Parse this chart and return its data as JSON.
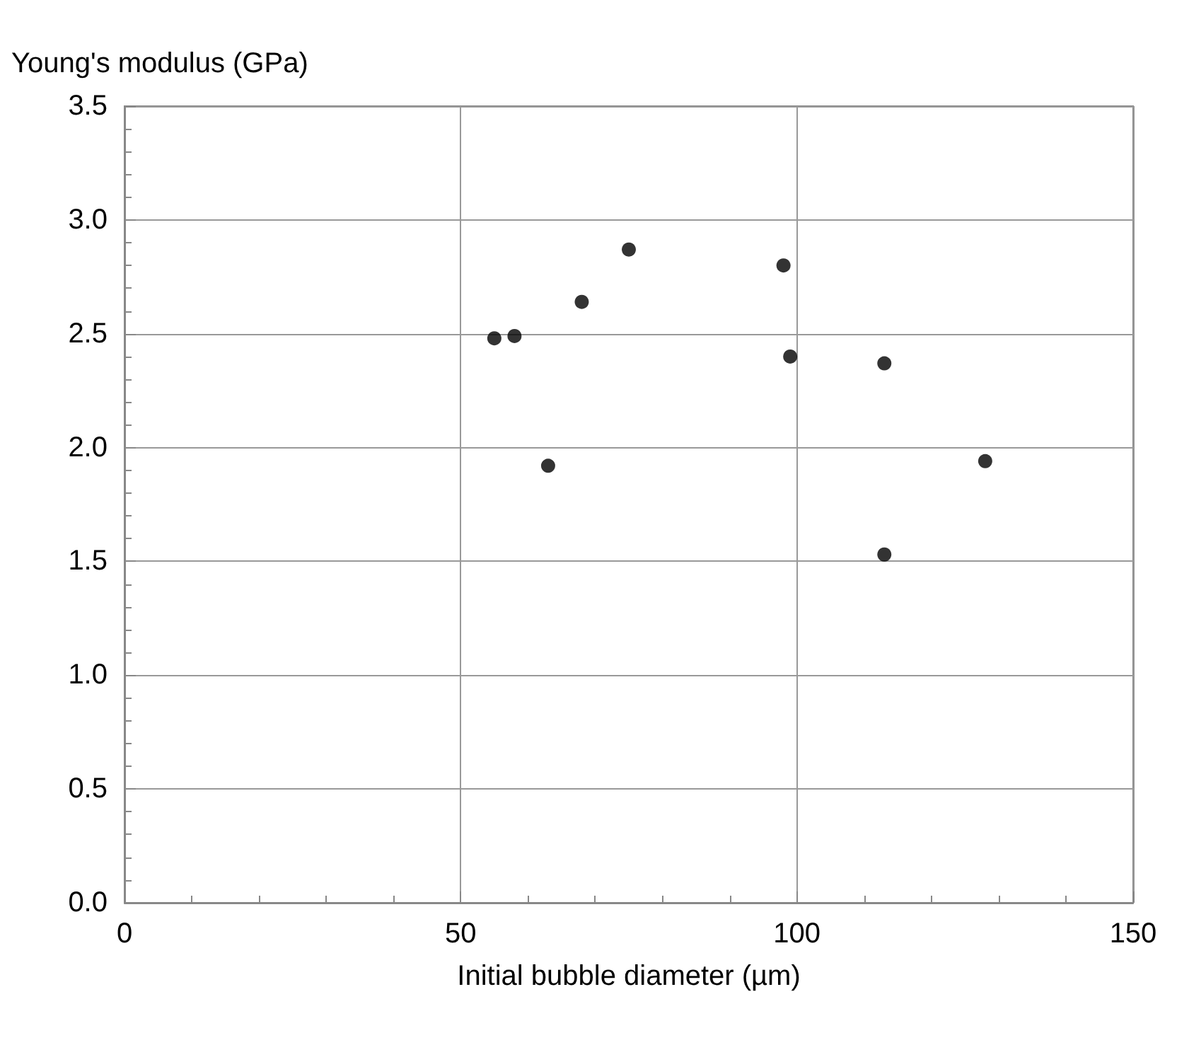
{
  "chart_data": {
    "type": "scatter",
    "xlabel": "Initial bubble diameter (µm)",
    "ylabel": "Young's modulus (GPa)",
    "x": [
      55,
      58,
      63,
      68,
      75,
      98,
      99,
      113,
      113,
      128
    ],
    "values": [
      2.48,
      2.49,
      1.92,
      2.64,
      2.87,
      2.8,
      2.4,
      2.37,
      1.53,
      1.94
    ],
    "color": "#000000",
    "marker": "circle",
    "xlim": [
      0,
      150
    ],
    "xticks": [
      0,
      50,
      100,
      150
    ],
    "ylim": [
      0,
      3.5
    ],
    "yticks": [
      {
        "value": 0,
        "label": "0.0"
      },
      {
        "value": 0.5,
        "label": "0.5"
      },
      {
        "value": 1,
        "label": "1.0"
      },
      {
        "value": 1.5,
        "label": "1.5"
      },
      {
        "value": 2,
        "label": "2.0"
      },
      {
        "value": 2.5,
        "label": "2.5"
      },
      {
        "value": 3,
        "label": "3.0"
      },
      {
        "value": 3.5,
        "label": "3.5"
      }
    ],
    "grid": true
  }
}
